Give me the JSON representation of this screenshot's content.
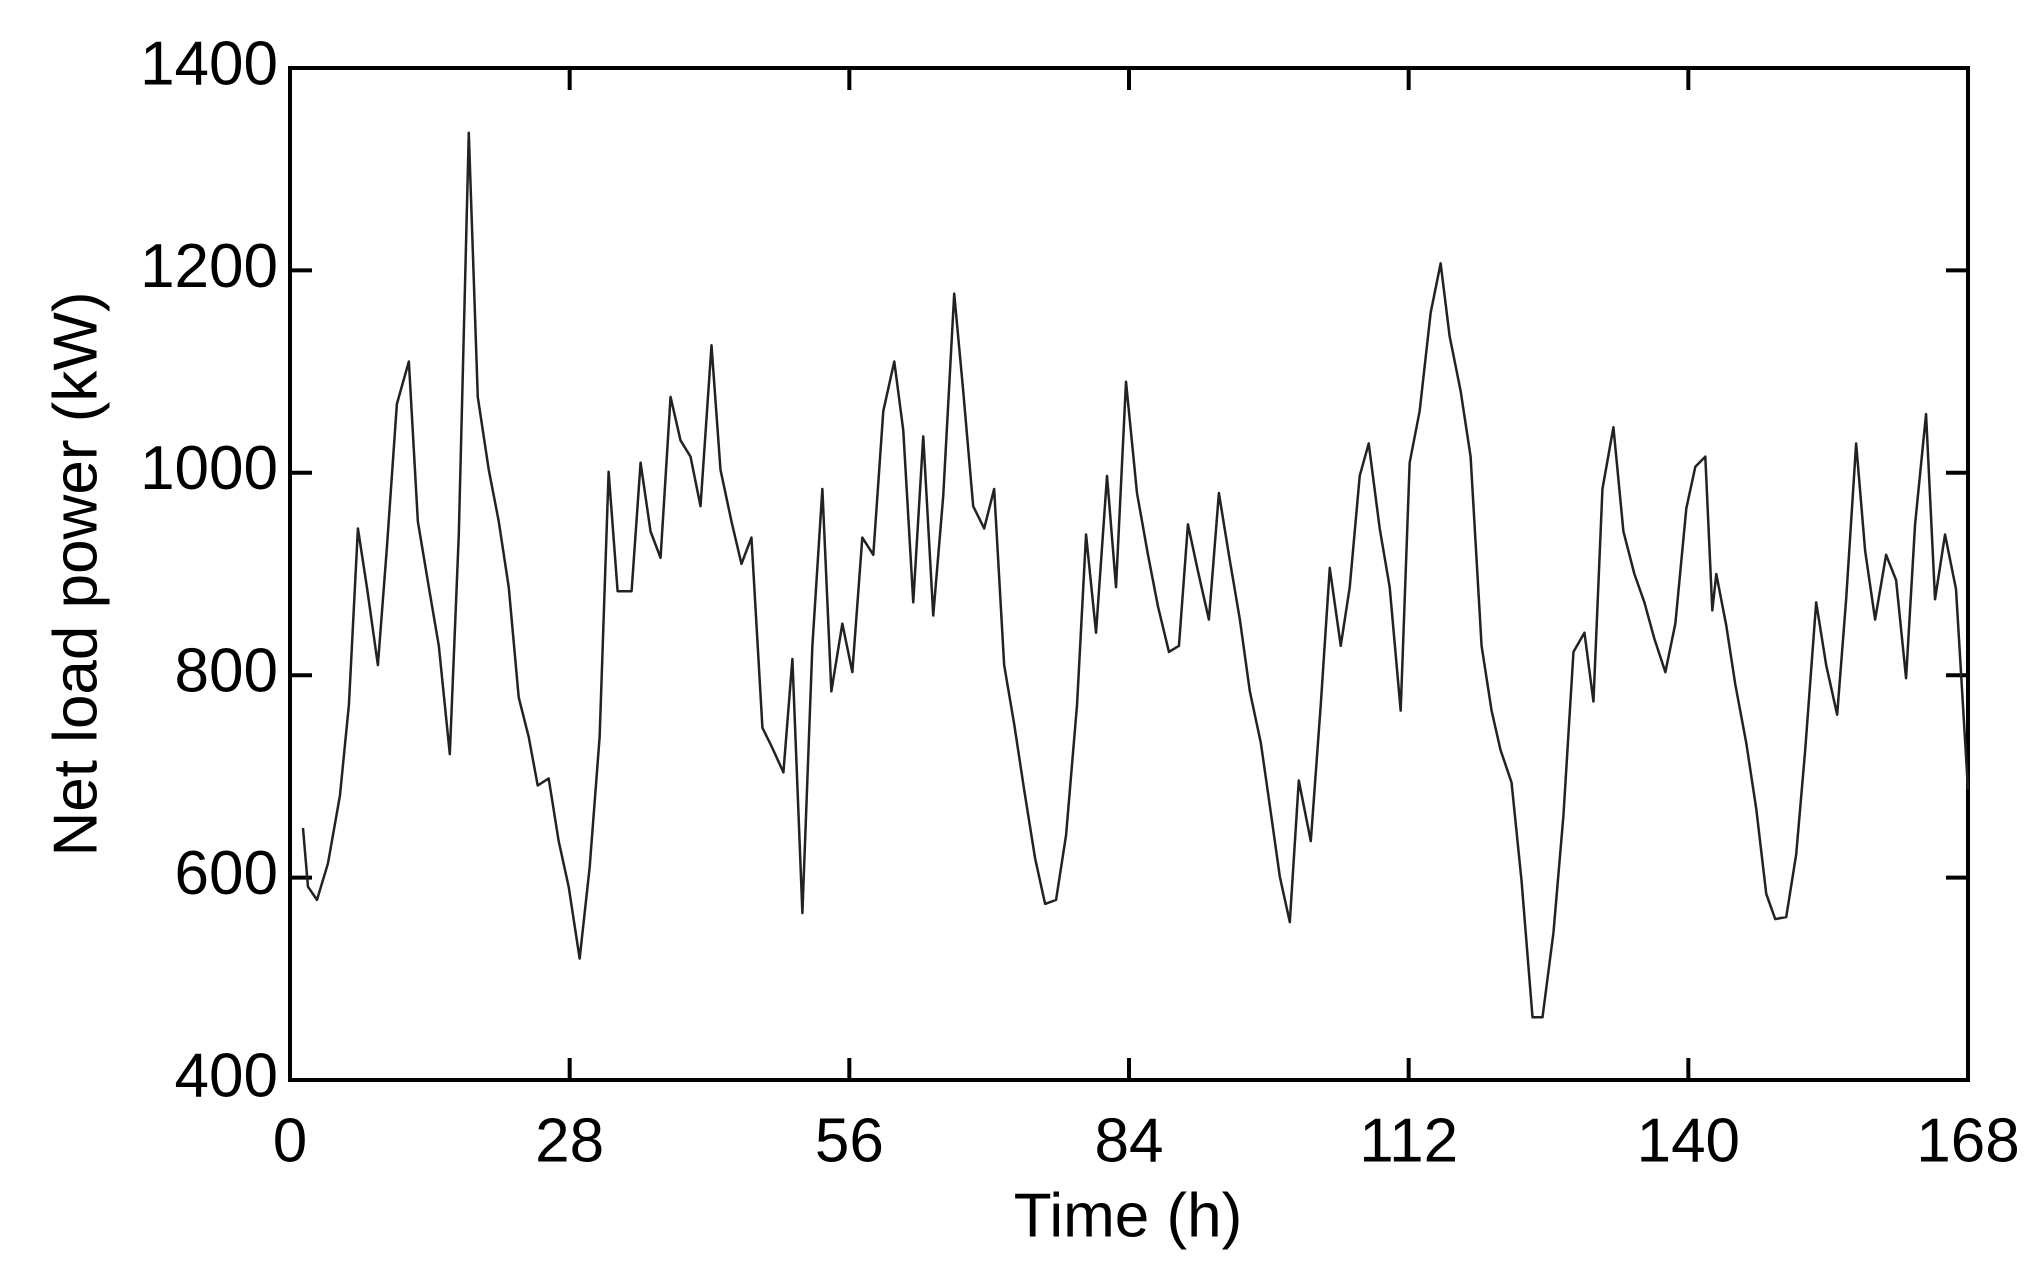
{
  "chart_data": {
    "type": "line",
    "xlabel": "Time (h)",
    "ylabel": "Net load power (kW)",
    "xlim": [
      0,
      168
    ],
    "xticks": [
      0,
      28,
      56,
      84,
      112,
      140,
      168
    ],
    "ylim": [
      400,
      1400
    ],
    "yticks": [
      400,
      600,
      800,
      1000,
      1200,
      1400
    ],
    "grid": false,
    "series": [
      {
        "color": "#222222",
        "x": [
          1.3,
          1.8,
          2.7,
          3.8,
          5,
          5.9,
          6.8,
          7.7,
          8.8,
          9.7,
          10.7,
          11.9,
          12.8,
          13.9,
          14.9,
          16,
          16.9,
          17.9,
          18.8,
          19.9,
          20.9,
          21.9,
          22.9,
          23.9,
          24.8,
          25.9,
          26.9,
          27.9,
          29,
          30,
          31,
          31.9,
          32.8,
          34.2,
          35.1,
          36.1,
          37.1,
          38.1,
          39.1,
          40.1,
          41.1,
          42.2,
          43.1,
          44.2,
          45.2,
          46.2,
          47.3,
          48.2,
          49.4,
          50.3,
          51.3,
          52.3,
          53.3,
          54.2,
          55.3,
          56.3,
          57.3,
          58.4,
          59.4,
          60.5,
          61.4,
          62.4,
          63.4,
          64.4,
          65.4,
          66.5,
          67.4,
          68.4,
          69.5,
          70.5,
          71.5,
          72.5,
          73.5,
          74.6,
          75.6,
          76.7,
          77.7,
          78.8,
          79.7,
          80.7,
          81.8,
          82.7,
          83.7,
          84.8,
          85.9,
          86.9,
          88,
          89,
          89.9,
          90.9,
          92,
          93,
          94,
          95.1,
          96.1,
          97.2,
          98.1,
          99.1,
          100.1,
          101,
          102.2,
          103.2,
          104.1,
          105.2,
          106.1,
          107.1,
          108,
          109.1,
          110.1,
          111.2,
          112.1,
          113.1,
          114.2,
          115.2,
          116.1,
          117.2,
          118.2,
          119.3,
          120.3,
          121.2,
          122.3,
          123.3,
          124.4,
          125.4,
          126.5,
          127.5,
          128.5,
          129.6,
          130.5,
          131.4,
          132.5,
          133.5,
          134.6,
          135.6,
          136.6,
          137.7,
          138.7,
          139.8,
          140.7,
          141.7,
          142.4,
          142.8,
          143.8,
          144.7,
          145.8,
          146.8,
          147.8,
          148.7,
          149.8,
          150.8,
          151.7,
          152.8,
          153.8,
          154.9,
          155.8,
          156.8,
          157.7,
          158.7,
          159.8,
          160.8,
          161.8,
          162.7,
          163.8,
          164.7,
          165.7,
          166.8,
          168
        ],
        "values": [
          649,
          591,
          578,
          614,
          681,
          771,
          945,
          887,
          810,
          926,
          1068,
          1110,
          952,
          887,
          829,
          722,
          939,
          1336,
          1075,
          1003,
          952,
          887,
          778,
          739,
          691,
          698,
          636,
          591,
          520,
          610,
          739,
          1001,
          883,
          883,
          1010,
          942,
          916,
          1075,
          1032,
          1016,
          967,
          1126,
          1003,
          952,
          910,
          936,
          748,
          730,
          704,
          816,
          565,
          829,
          984,
          784,
          851,
          803,
          936,
          919,
          1061,
          1110,
          1042,
          872,
          1036,
          859,
          977,
          1177,
          1081,
          967,
          945,
          984,
          810,
          752,
          687,
          619,
          574,
          578,
          642,
          771,
          939,
          842,
          997,
          887,
          1090,
          980,
          919,
          868,
          823,
          829,
          949,
          903,
          855,
          980,
          919,
          855,
          784,
          733,
          671,
          601,
          556,
          696,
          636,
          771,
          906,
          829,
          887,
          997,
          1029,
          945,
          887,
          765,
          1010,
          1061,
          1158,
          1207,
          1135,
          1081,
          1016,
          829,
          765,
          726,
          694,
          597,
          462,
          462,
          546,
          662,
          823,
          842,
          774,
          984,
          1045,
          942,
          900,
          872,
          836,
          803,
          851,
          965,
          1006,
          1016,
          864,
          900,
          849,
          791,
          733,
          668,
          584,
          559,
          561,
          623,
          726,
          872,
          810,
          761,
          875,
          1029,
          923,
          855,
          919,
          894,
          797,
          949,
          1058,
          875,
          939,
          885,
          687
        ]
      }
    ]
  }
}
